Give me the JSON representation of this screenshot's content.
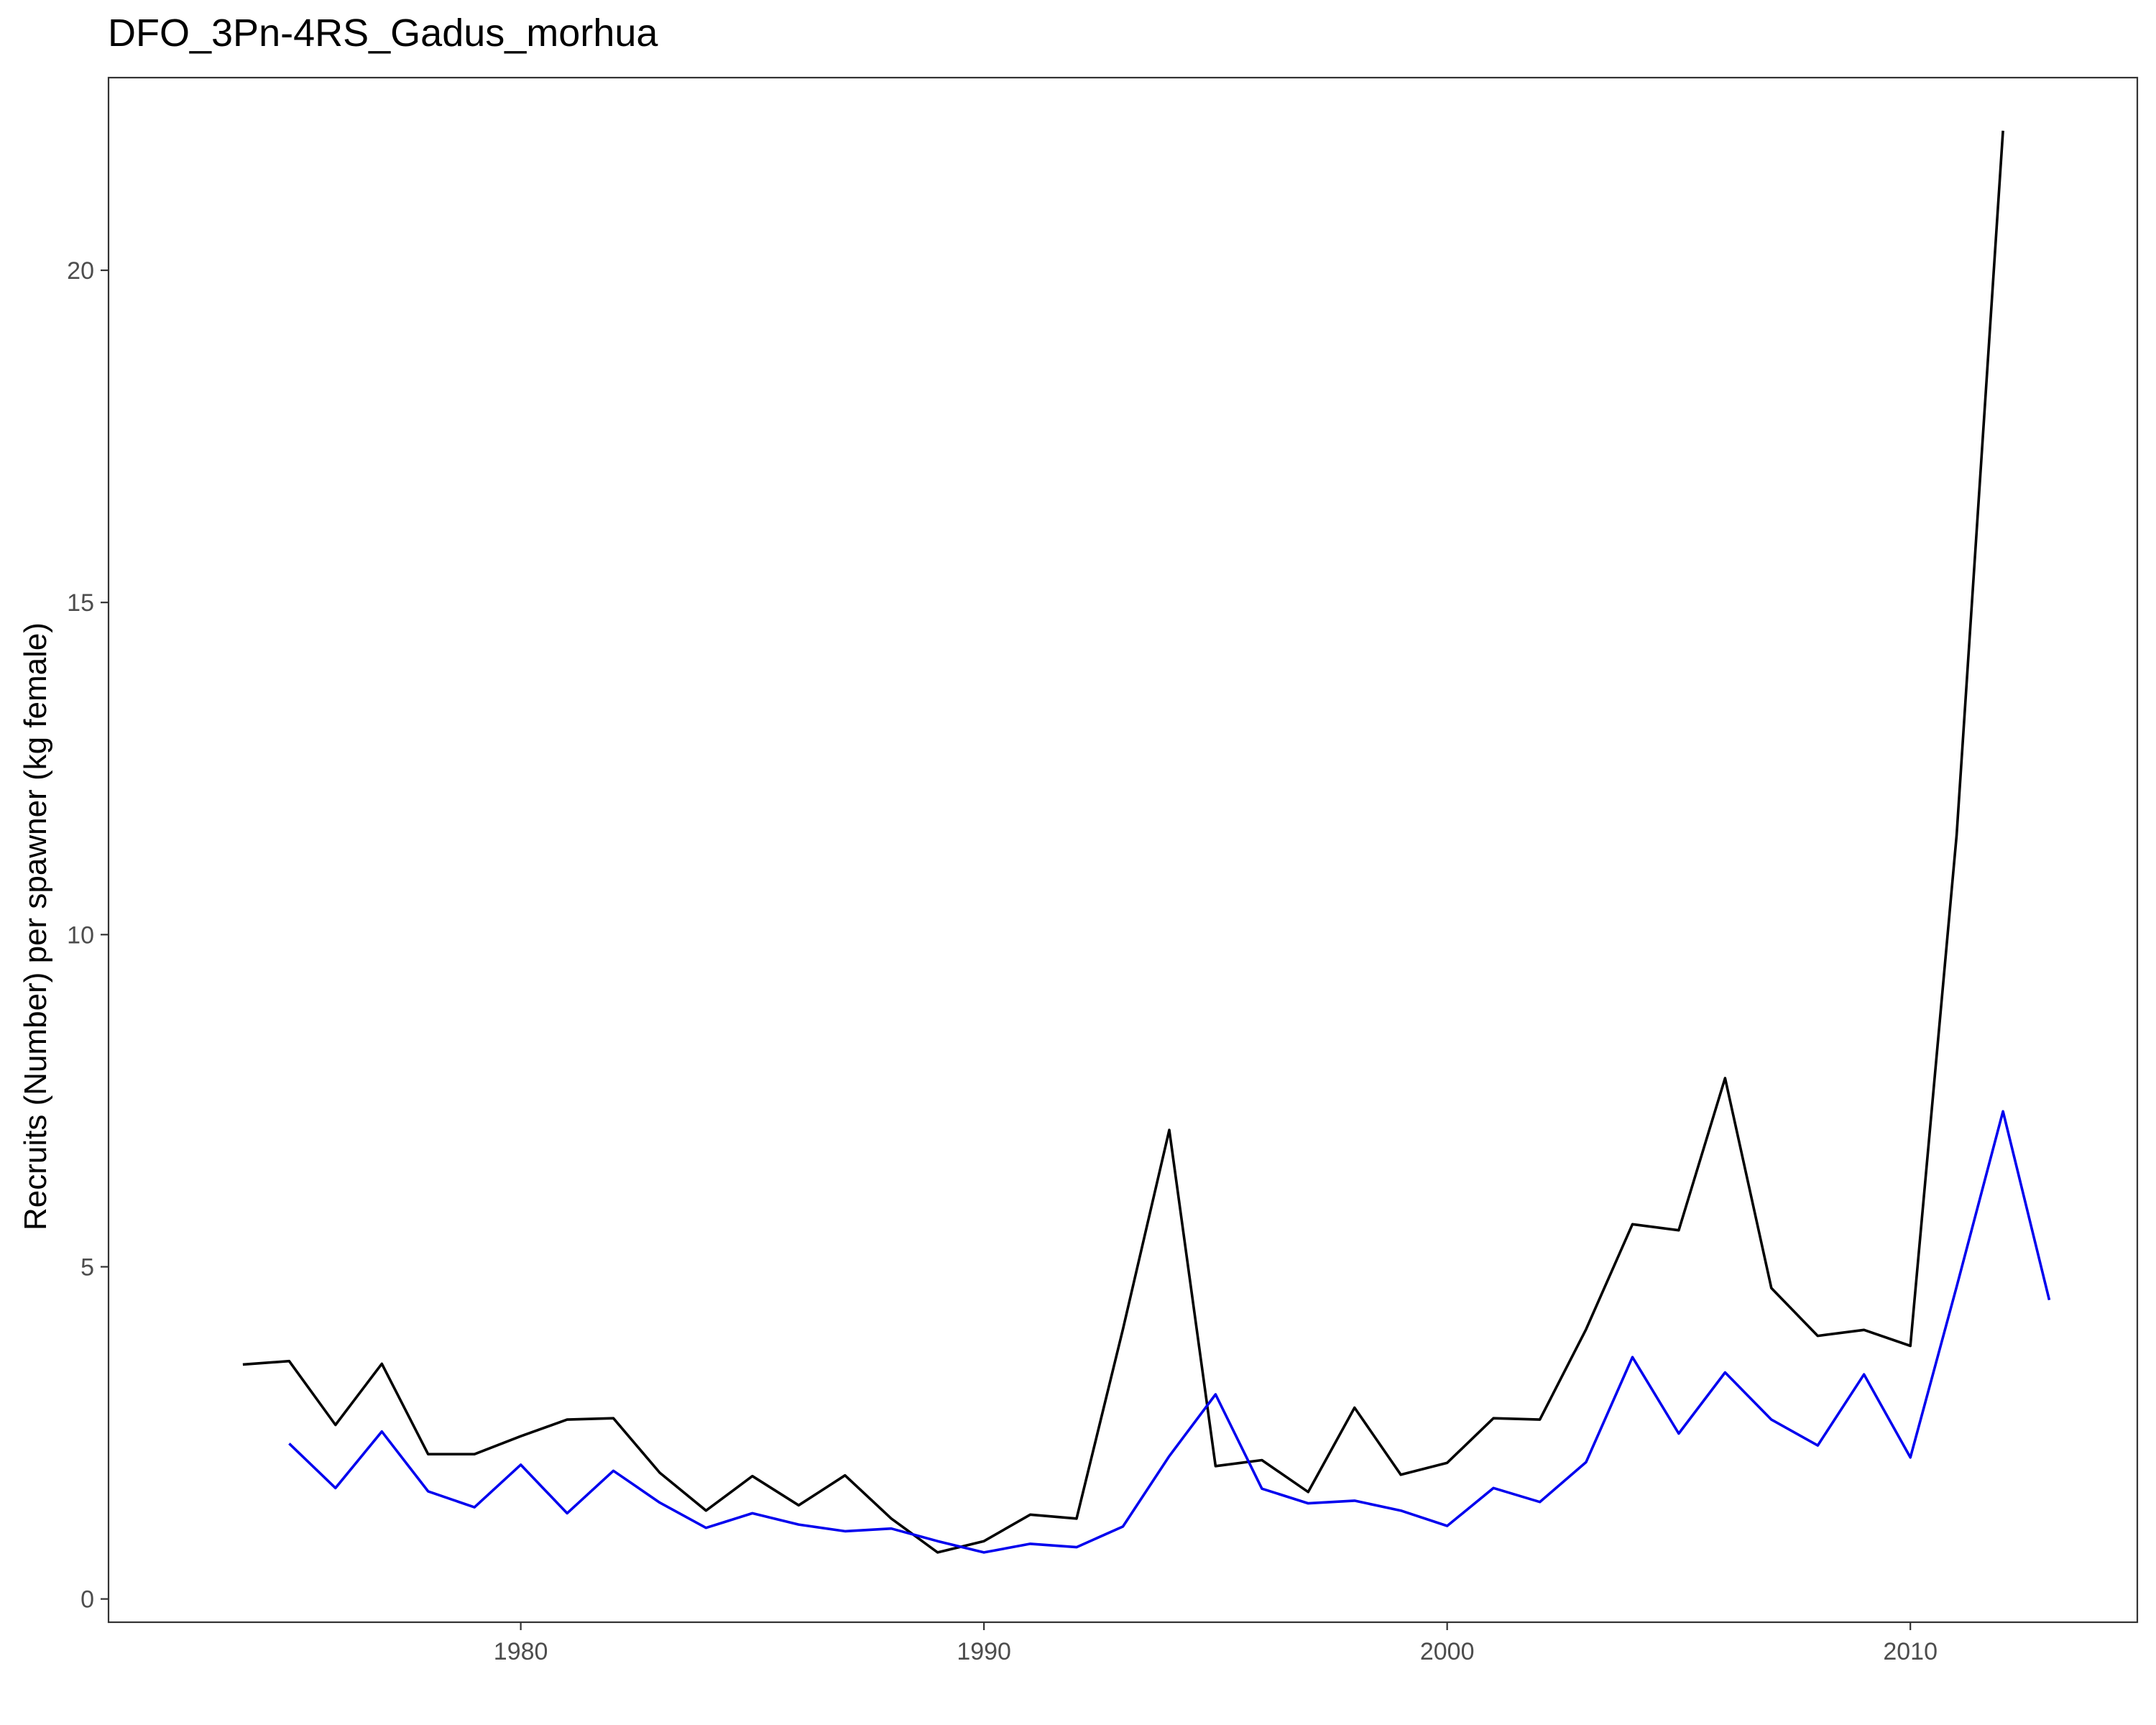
{
  "chart_data": {
    "type": "line",
    "title": "DFO_3Pn-4RS_Gadus_morhua",
    "xlabel": "",
    "ylabel": "Recruits (Number) per spawner (kg female)",
    "xlim": [
      1971.1,
      2014.9
    ],
    "ylim": [
      -0.35,
      22.9
    ],
    "xticks": [
      1980,
      1990,
      2000,
      2010
    ],
    "yticks": [
      0,
      5,
      10,
      15,
      20
    ],
    "grid": false,
    "legend": "none",
    "series": [
      {
        "color": "#000000",
        "x": [
          1974,
          1975,
          1976,
          1977,
          1978,
          1979,
          1980,
          1981,
          1982,
          1983,
          1984,
          1985,
          1986,
          1987,
          1988,
          1989,
          1990,
          1991,
          1992,
          1993,
          1994,
          1995,
          1996,
          1997,
          1998,
          1999,
          2000,
          2001,
          2002,
          2003,
          2004,
          2005,
          2006,
          2007,
          2008,
          2009,
          2010,
          2011,
          2012
        ],
        "y": [
          3.53,
          3.58,
          2.62,
          3.54,
          2.18,
          2.18,
          2.45,
          2.7,
          2.72,
          1.9,
          1.33,
          1.85,
          1.41,
          1.86,
          1.21,
          0.7,
          0.87,
          1.27,
          1.21,
          4.06,
          7.06,
          2.0,
          2.09,
          1.61,
          2.88,
          1.87,
          2.05,
          2.72,
          2.7,
          4.06,
          5.64,
          5.55,
          7.84,
          4.68,
          3.96,
          4.05,
          3.81,
          11.5,
          22.1
        ]
      },
      {
        "color": "#0000ee",
        "x": [
          1975,
          1976,
          1977,
          1978,
          1979,
          1980,
          1981,
          1982,
          1983,
          1984,
          1985,
          1986,
          1987,
          1988,
          1989,
          1990,
          1991,
          1992,
          1993,
          1994,
          1995,
          1996,
          1997,
          1998,
          1999,
          2000,
          2001,
          2002,
          2003,
          2004,
          2005,
          2006,
          2007,
          2008,
          2009,
          2010,
          2011,
          2012,
          2013
        ],
        "y": [
          2.34,
          1.67,
          2.52,
          1.62,
          1.38,
          2.02,
          1.29,
          1.93,
          1.45,
          1.07,
          1.29,
          1.12,
          1.02,
          1.06,
          0.87,
          0.7,
          0.83,
          0.78,
          1.09,
          2.15,
          3.08,
          1.66,
          1.44,
          1.48,
          1.33,
          1.1,
          1.67,
          1.46,
          2.06,
          3.64,
          2.49,
          3.41,
          2.7,
          2.31,
          3.38,
          2.13,
          4.7,
          7.34,
          4.5
        ]
      }
    ]
  }
}
